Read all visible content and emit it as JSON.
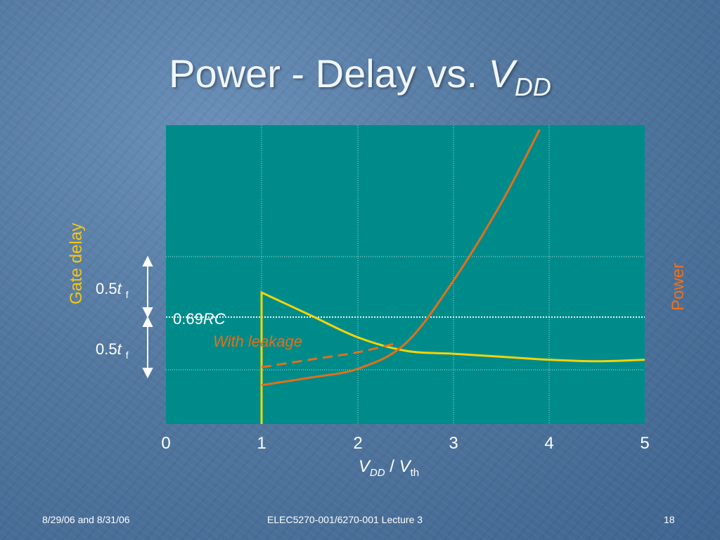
{
  "slide": {
    "title_main": "Power - Delay vs.",
    "title_var": "V",
    "title_sub": "DD"
  },
  "footer": {
    "date": "8/29/06 and 8/31/06",
    "course": "ELEC5270-001/6270-001 Lecture 3",
    "page": "18"
  },
  "colors": {
    "plot_bg": "#008b8b",
    "delay_curve": "#f2d40a",
    "power_curve": "#e0701a",
    "grid": "#c8f0ea",
    "axis_text": "#ffffff",
    "delay_label": "#f2c811",
    "power_label": "#f07018"
  },
  "chart_data": {
    "type": "line",
    "xlabel": {
      "v": "V",
      "v_sub": "DD",
      "sep": " / ",
      "v2": "V",
      "v2_sub": "th"
    },
    "xlim": [
      0,
      5
    ],
    "x_ticks": [
      0,
      1,
      2,
      3,
      4,
      5
    ],
    "x_tick_labels": [
      "0",
      "1",
      "2",
      "3",
      "4",
      "5"
    ],
    "ylabel_left": "Gate delay",
    "ylabel_right": "Power",
    "grid": true,
    "annotations": {
      "tf_upper": {
        "num": "0.5",
        "var": "t",
        "sub": "f"
      },
      "tf_lower": {
        "num": "0.5",
        "var": "t",
        "sub": "f"
      },
      "rc_label": {
        "num": "0.69",
        "var": "RC"
      },
      "leakage_label": "With leakage"
    },
    "series": [
      {
        "name": "Gate delay",
        "points": [
          [
            1.0,
            0.0
          ],
          [
            1.0,
            0.44
          ],
          [
            1.5,
            0.365
          ],
          [
            2.0,
            0.29
          ],
          [
            2.5,
            0.245
          ],
          [
            3.0,
            0.235
          ],
          [
            3.5,
            0.225
          ],
          [
            4.0,
            0.215
          ],
          [
            4.5,
            0.21
          ],
          [
            5.0,
            0.215
          ]
        ]
      },
      {
        "name": "Power",
        "points": [
          [
            1.0,
            0.13
          ],
          [
            1.5,
            0.155
          ],
          [
            2.0,
            0.185
          ],
          [
            2.5,
            0.27
          ],
          [
            3.0,
            0.48
          ],
          [
            3.5,
            0.74
          ],
          [
            3.9,
            0.985
          ]
        ]
      },
      {
        "name": "With leakage",
        "points": [
          [
            1.0,
            0.19
          ],
          [
            1.5,
            0.215
          ],
          [
            2.0,
            0.24
          ],
          [
            2.4,
            0.27
          ]
        ]
      }
    ]
  }
}
